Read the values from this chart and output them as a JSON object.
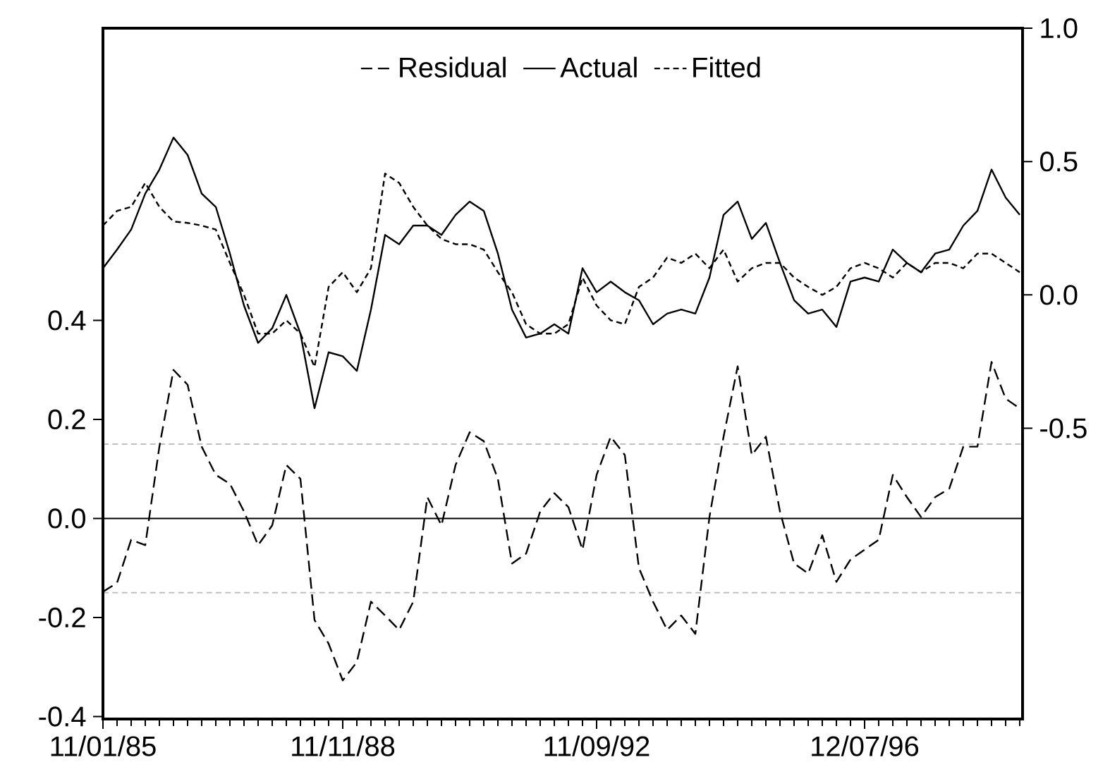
{
  "chart_data": {
    "type": "line",
    "categories": [
      "11/01/85",
      null,
      null,
      null,
      null,
      null,
      null,
      null,
      null,
      null,
      null,
      null,
      null,
      null,
      null,
      null,
      null,
      "11/11/88",
      null,
      null,
      null,
      null,
      null,
      null,
      null,
      null,
      null,
      null,
      null,
      null,
      null,
      null,
      null,
      null,
      null,
      "11/09/92",
      null,
      null,
      null,
      null,
      null,
      null,
      null,
      null,
      null,
      null,
      null,
      null,
      null,
      null,
      null,
      null,
      null,
      null,
      "12/07/96",
      null,
      null,
      null,
      null,
      null,
      null,
      null,
      null,
      null,
      null,
      null
    ],
    "series": [
      {
        "name": "Residual",
        "color": "#000000",
        "axis": "y",
        "line_style": "dashed",
        "values": [
          -0.148,
          -0.13,
          -0.043,
          -0.054,
          0.145,
          0.3,
          0.27,
          0.145,
          0.088,
          0.07,
          0.014,
          -0.054,
          -0.014,
          0.108,
          0.08,
          -0.205,
          -0.253,
          -0.327,
          -0.29,
          -0.168,
          -0.196,
          -0.225,
          -0.168,
          0.043,
          -0.014,
          0.108,
          0.174,
          0.156,
          0.08,
          -0.091,
          -0.071,
          0.014,
          0.051,
          0.023,
          -0.063,
          0.088,
          0.165,
          0.128,
          -0.1,
          -0.168,
          -0.225,
          -0.196,
          -0.233,
          0.003,
          0.165,
          0.307,
          0.128,
          0.165,
          0.014,
          -0.091,
          -0.111,
          -0.034,
          -0.128,
          -0.083,
          -0.063,
          -0.043,
          0.088,
          0.043,
          0.003,
          0.043,
          0.06,
          0.145,
          0.145,
          0.316,
          0.242,
          0.222
        ]
      },
      {
        "name": "Actual",
        "color": "#000000",
        "axis": "y2",
        "line_style": "solid",
        "values": [
          0.1,
          0.17,
          0.245,
          0.38,
          0.47,
          0.59,
          0.525,
          0.38,
          0.33,
          0.155,
          -0.04,
          -0.18,
          -0.125,
          0.0,
          -0.145,
          -0.425,
          -0.215,
          -0.23,
          -0.285,
          -0.055,
          0.225,
          0.19,
          0.26,
          0.26,
          0.225,
          0.3,
          0.35,
          0.315,
          0.155,
          -0.055,
          -0.16,
          -0.145,
          -0.11,
          -0.145,
          0.1,
          0.01,
          0.05,
          0.01,
          -0.02,
          -0.11,
          -0.07,
          -0.055,
          -0.07,
          0.065,
          0.3,
          0.35,
          0.21,
          0.27,
          0.12,
          -0.02,
          -0.07,
          -0.055,
          -0.12,
          0.05,
          0.065,
          0.05,
          0.17,
          0.12,
          0.085,
          0.155,
          0.17,
          0.26,
          0.315,
          0.47,
          0.365,
          0.3
        ]
      },
      {
        "name": "Fitted",
        "color": "#000000",
        "axis": "y2",
        "line_style": "dashed",
        "values": [
          0.26,
          0.315,
          0.33,
          0.42,
          0.33,
          0.275,
          0.27,
          0.26,
          0.245,
          0.12,
          0.0,
          -0.145,
          -0.145,
          -0.095,
          -0.145,
          -0.27,
          0.03,
          0.085,
          0.01,
          0.1,
          0.455,
          0.42,
          0.33,
          0.26,
          0.21,
          0.19,
          0.19,
          0.17,
          0.085,
          0.01,
          -0.11,
          -0.145,
          -0.145,
          -0.11,
          0.065,
          -0.04,
          -0.095,
          -0.11,
          0.03,
          0.065,
          0.14,
          0.12,
          0.155,
          0.1,
          0.17,
          0.05,
          0.1,
          0.12,
          0.12,
          0.065,
          0.03,
          0.0,
          0.03,
          0.1,
          0.12,
          0.1,
          0.065,
          0.12,
          0.085,
          0.12,
          0.12,
          0.1,
          0.155,
          0.155,
          0.12,
          0.085
        ]
      }
    ],
    "ylim": [
      -0.405,
      0.99
    ],
    "yticks": [
      -0.4,
      -0.2,
      {
        "value": 0,
        "label": "0.0"
      },
      0.2,
      0.4
    ],
    "y2lim": [
      -1.59,
      1.0
    ],
    "y2ticks": [
      -0.5,
      {
        "value": 0,
        "label": "0.0"
      },
      0.5,
      {
        "value": 1,
        "label": "1.0"
      }
    ],
    "ref_lines": [
      {
        "axis": "y",
        "value": 0,
        "color": "#000000",
        "line_style": "solid"
      },
      {
        "axis": "y",
        "value": 0.15,
        "color": "#c0c0c0",
        "line_style": "dashed"
      },
      {
        "axis": "y",
        "value": -0.15,
        "color": "#c0c0c0",
        "line_style": "dashed"
      }
    ],
    "legend": "top"
  }
}
